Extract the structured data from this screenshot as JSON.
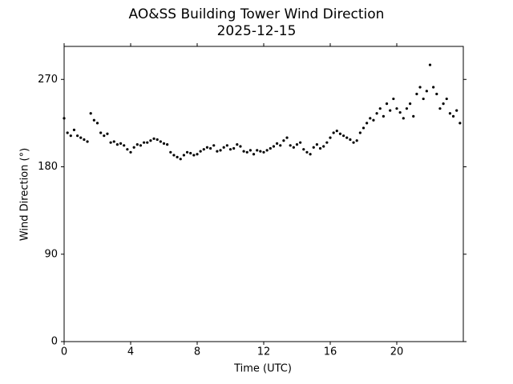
{
  "chart_data": {
    "type": "scatter",
    "title": "AO&SS Building Tower Wind Direction",
    "subtitle": "2025-12-15",
    "x_label": "Time (UTC)",
    "y_label": "Wind Direction (°)",
    "color": "#000000",
    "xlim": [
      0,
      24
    ],
    "xticks": [
      0,
      4,
      8,
      12,
      16,
      20
    ],
    "ylim": [
      0,
      304
    ],
    "yticks": [
      0,
      90,
      180,
      270
    ],
    "grid": false,
    "x": [
      0,
      0.2,
      0.4,
      0.6,
      0.8,
      1.0,
      1.2,
      1.4,
      1.6,
      1.8,
      2.0,
      2.2,
      2.4,
      2.6,
      2.8,
      3.0,
      3.2,
      3.4,
      3.6,
      3.8,
      4.0,
      4.2,
      4.4,
      4.6,
      4.8,
      5.0,
      5.2,
      5.4,
      5.6,
      5.8,
      6.0,
      6.2,
      6.4,
      6.6,
      6.8,
      7.0,
      7.2,
      7.4,
      7.6,
      7.8,
      8.0,
      8.2,
      8.4,
      8.6,
      8.8,
      9.0,
      9.2,
      9.4,
      9.6,
      9.8,
      10.0,
      10.2,
      10.4,
      10.6,
      10.8,
      11.0,
      11.2,
      11.4,
      11.6,
      11.8,
      12.0,
      12.2,
      12.4,
      12.6,
      12.8,
      13.0,
      13.2,
      13.4,
      13.6,
      13.8,
      14.0,
      14.2,
      14.4,
      14.6,
      14.8,
      15.0,
      15.2,
      15.4,
      15.6,
      15.8,
      16.0,
      16.2,
      16.4,
      16.6,
      16.8,
      17.0,
      17.2,
      17.4,
      17.6,
      17.8,
      18.0,
      18.2,
      18.4,
      18.6,
      18.8,
      19.0,
      19.2,
      19.4,
      19.6,
      19.8,
      20.0,
      20.2,
      20.4,
      20.6,
      20.8,
      21.0,
      21.2,
      21.4,
      21.6,
      21.8,
      22.0,
      22.2,
      22.4,
      22.6,
      22.8,
      23.0,
      23.2,
      23.4,
      23.6,
      23.8
    ],
    "values": [
      230,
      215,
      212,
      218,
      212,
      210,
      208,
      206,
      235,
      228,
      225,
      215,
      212,
      214,
      205,
      206,
      203,
      204,
      202,
      198,
      195,
      200,
      203,
      202,
      205,
      205,
      207,
      209,
      208,
      206,
      204,
      203,
      195,
      192,
      190,
      188,
      192,
      195,
      194,
      192,
      193,
      196,
      198,
      200,
      199,
      202,
      196,
      197,
      200,
      202,
      198,
      199,
      203,
      201,
      196,
      195,
      197,
      193,
      197,
      196,
      195,
      197,
      199,
      201,
      204,
      202,
      207,
      210,
      202,
      200,
      203,
      205,
      198,
      195,
      193,
      200,
      203,
      199,
      201,
      205,
      210,
      215,
      217,
      214,
      212,
      210,
      208,
      205,
      207,
      215,
      220,
      225,
      230,
      228,
      235,
      240,
      232,
      245,
      238,
      250,
      240,
      236,
      230,
      240,
      245,
      232,
      255,
      262,
      250,
      258,
      285,
      262,
      255,
      240,
      245,
      250,
      235,
      232,
      238,
      225
    ]
  }
}
